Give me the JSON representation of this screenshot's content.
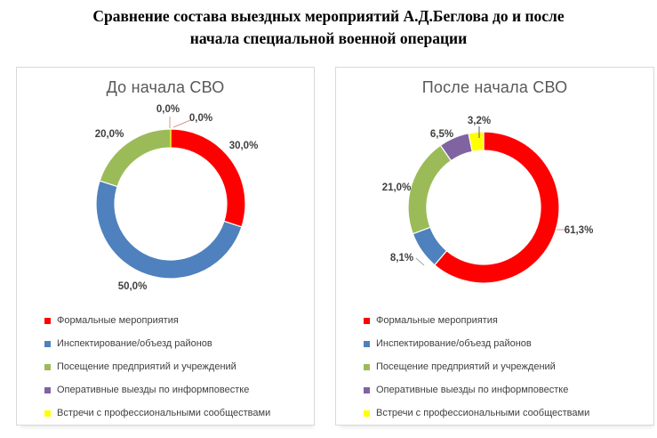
{
  "page_title": {
    "line1": "Сравнение состава выездных мероприятий А.Д.Беглова до и после",
    "line2": "начала специальной военной операции"
  },
  "palette": {
    "red": "#FF0000",
    "blue": "#4E81BD",
    "green": "#9BBB59",
    "purple": "#8064A2",
    "yellow": "#FFFF00"
  },
  "text_colors": {
    "main_title": "#000000",
    "chart_title": "#595959",
    "data_label": "#404040",
    "legend_label": "#404040"
  },
  "chart_data": [
    {
      "type": "pie",
      "subtype": "donut",
      "title": "До начала СВО",
      "categories": [
        "Формальные мероприятия",
        "Инспектирование/объезд районов",
        "Посещение предприятий и учреждений",
        "Оперативные выезды по информповестке",
        "Встречи с профессиональными сообществами"
      ],
      "values": [
        30.0,
        50.0,
        20.0,
        0.0,
        0.0
      ],
      "labels": [
        "30,0%",
        "50,0%",
        "20,0%",
        "0,0%",
        "0,0%"
      ],
      "colors": [
        "#FF0000",
        "#4E81BD",
        "#9BBB59",
        "#8064A2",
        "#FFFF00"
      ],
      "start_angle_deg": 0,
      "direction": "clockwise",
      "legend_position": "bottom-left"
    },
    {
      "type": "pie",
      "subtype": "donut",
      "title": "После начала СВО",
      "categories": [
        "Формальные мероприятия",
        "Инспектирование/объезд районов",
        "Посещение предприятий и учреждений",
        "Оперативные выезды по информповестке",
        "Встречи с профессиональными сообществами"
      ],
      "values": [
        61.3,
        8.1,
        21.0,
        6.5,
        3.2
      ],
      "labels": [
        "61,3%",
        "8,1%",
        "21,0%",
        "6,5%",
        "3,2%"
      ],
      "colors": [
        "#FF0000",
        "#4E81BD",
        "#9BBB59",
        "#8064A2",
        "#FFFF00"
      ],
      "start_angle_deg": 0,
      "direction": "clockwise",
      "legend_position": "bottom-left"
    }
  ]
}
